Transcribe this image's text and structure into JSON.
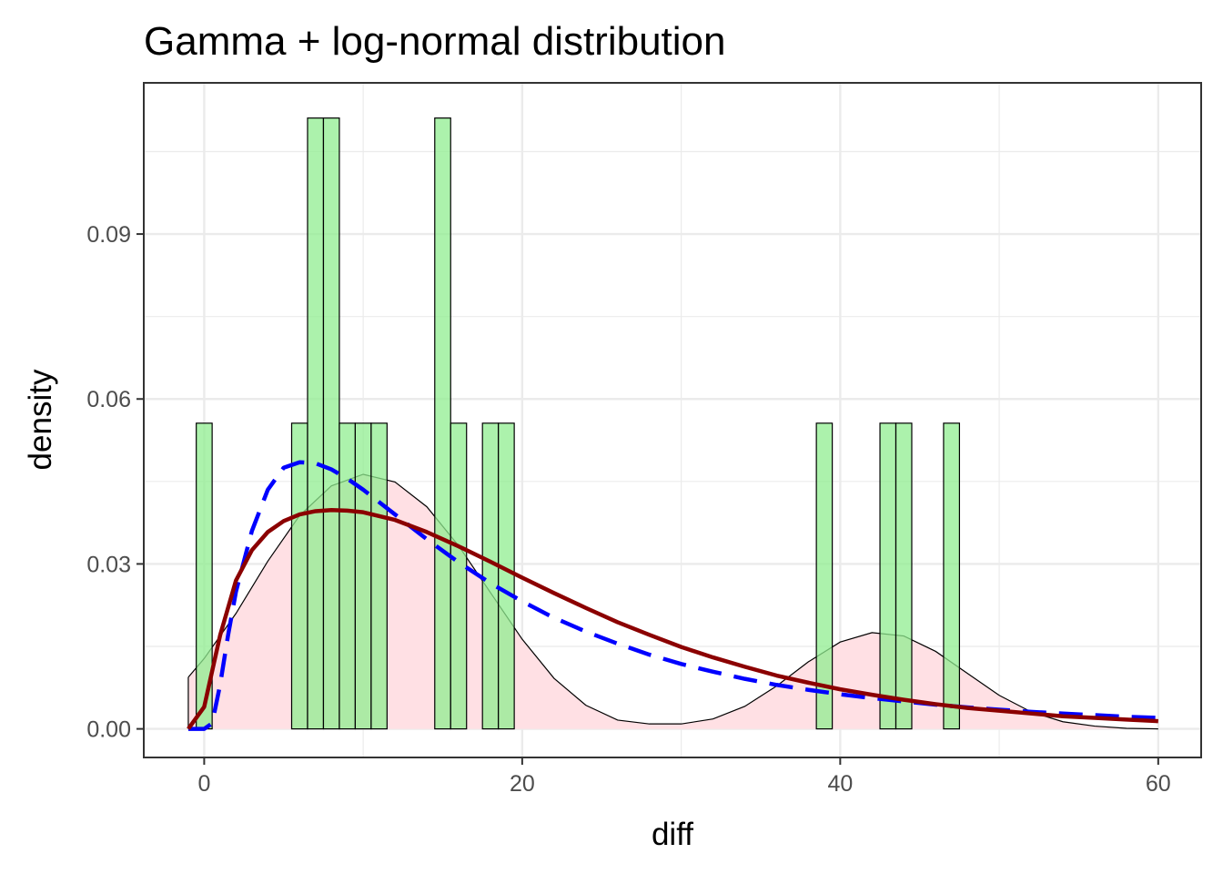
{
  "chart_data": {
    "type": "histogram",
    "title": "Gamma + log-normal distribution",
    "xlabel": "diff",
    "ylabel": "density",
    "xlim": [
      -3.8,
      62.7
    ],
    "ylim": [
      -0.0052,
      0.1175
    ],
    "x_ticks": [
      0,
      20,
      40,
      60
    ],
    "x_tick_labels": [
      "0",
      "20",
      "40",
      "60"
    ],
    "y_ticks": [
      0,
      0.03,
      0.06,
      0.09
    ],
    "y_tick_labels": [
      "0.00",
      "0.03",
      "0.06",
      "0.09"
    ],
    "grid": true,
    "legend": "none",
    "colors": {
      "histogram_fill": "#90EE90",
      "histogram_edge": "#000000",
      "kde_fill": "#FFE0E4",
      "kde_line": "#000000",
      "gamma_line": "#8B0000",
      "lognormal_line": "#0000FF",
      "grid": "#EBEBEB",
      "panel_border": "#333333"
    },
    "bin_width": 1,
    "histogram": [
      {
        "x": 0,
        "density": 0.0556
      },
      {
        "x": 6,
        "density": 0.0556
      },
      {
        "x": 7,
        "density": 0.1111
      },
      {
        "x": 8,
        "density": 0.1111
      },
      {
        "x": 9,
        "density": 0.0556
      },
      {
        "x": 10,
        "density": 0.0556
      },
      {
        "x": 11,
        "density": 0.0556
      },
      {
        "x": 15,
        "density": 0.1111
      },
      {
        "x": 16,
        "density": 0.0556
      },
      {
        "x": 18,
        "density": 0.0556
      },
      {
        "x": 19,
        "density": 0.0556
      },
      {
        "x": 39,
        "density": 0.0556
      },
      {
        "x": 43,
        "density": 0.0556
      },
      {
        "x": 44,
        "density": 0.0556
      },
      {
        "x": 47,
        "density": 0.0556
      }
    ],
    "kde": {
      "x": [
        -1,
        0,
        2,
        4,
        6,
        8,
        10,
        12,
        14,
        16,
        18,
        20,
        22,
        24,
        26,
        28,
        30,
        32,
        34,
        36,
        38,
        40,
        42,
        44,
        46,
        48,
        50,
        52,
        54,
        56,
        58,
        60
      ],
      "y": [
        0.0094,
        0.0128,
        0.021,
        0.0305,
        0.0388,
        0.0442,
        0.0463,
        0.0449,
        0.0404,
        0.0333,
        0.0248,
        0.0163,
        0.0092,
        0.0043,
        0.0016,
        0.0009,
        0.0009,
        0.0018,
        0.0041,
        0.0078,
        0.0122,
        0.0158,
        0.0175,
        0.0169,
        0.0141,
        0.0101,
        0.0061,
        0.0031,
        0.0013,
        0.0005,
        0.0001,
        0.0
      ]
    },
    "series": [
      {
        "style": "solid",
        "x": [
          -1,
          0,
          1,
          2,
          3,
          4,
          5,
          6,
          7,
          8,
          9,
          10,
          12,
          14,
          16,
          18,
          20,
          22,
          24,
          26,
          28,
          30,
          32,
          34,
          36,
          38,
          40,
          42,
          44,
          46,
          48,
          50,
          52,
          54,
          56,
          58,
          60
        ],
        "y": [
          0.0,
          0.004,
          0.017,
          0.027,
          0.0325,
          0.0358,
          0.0378,
          0.039,
          0.0396,
          0.0398,
          0.0397,
          0.0394,
          0.038,
          0.0358,
          0.0332,
          0.0304,
          0.0275,
          0.0247,
          0.022,
          0.0194,
          0.0171,
          0.0149,
          0.013,
          0.0113,
          0.0097,
          0.0084,
          0.0072,
          0.0062,
          0.0053,
          0.0045,
          0.0038,
          0.0033,
          0.0028,
          0.0023,
          0.002,
          0.0017,
          0.0014
        ]
      },
      {
        "style": "dashed",
        "x": [
          -1,
          0,
          0.5,
          1,
          1.5,
          2,
          3,
          4,
          5,
          6,
          7,
          8,
          9,
          10,
          12,
          14,
          16,
          18,
          20,
          22,
          24,
          26,
          28,
          30,
          32,
          34,
          36,
          38,
          40,
          42,
          44,
          46,
          48,
          50,
          52,
          54,
          56,
          58,
          60
        ],
        "y": [
          0.0,
          0.0,
          0.001,
          0.008,
          0.017,
          0.025,
          0.036,
          0.0435,
          0.0475,
          0.0485,
          0.0483,
          0.0472,
          0.0455,
          0.0435,
          0.039,
          0.0345,
          0.0303,
          0.0265,
          0.0232,
          0.0202,
          0.0177,
          0.0155,
          0.0135,
          0.0118,
          0.0104,
          0.0091,
          0.008,
          0.0071,
          0.0063,
          0.0056,
          0.005,
          0.0044,
          0.0039,
          0.0035,
          0.0031,
          0.0028,
          0.0025,
          0.0022,
          0.002
        ]
      }
    ]
  }
}
